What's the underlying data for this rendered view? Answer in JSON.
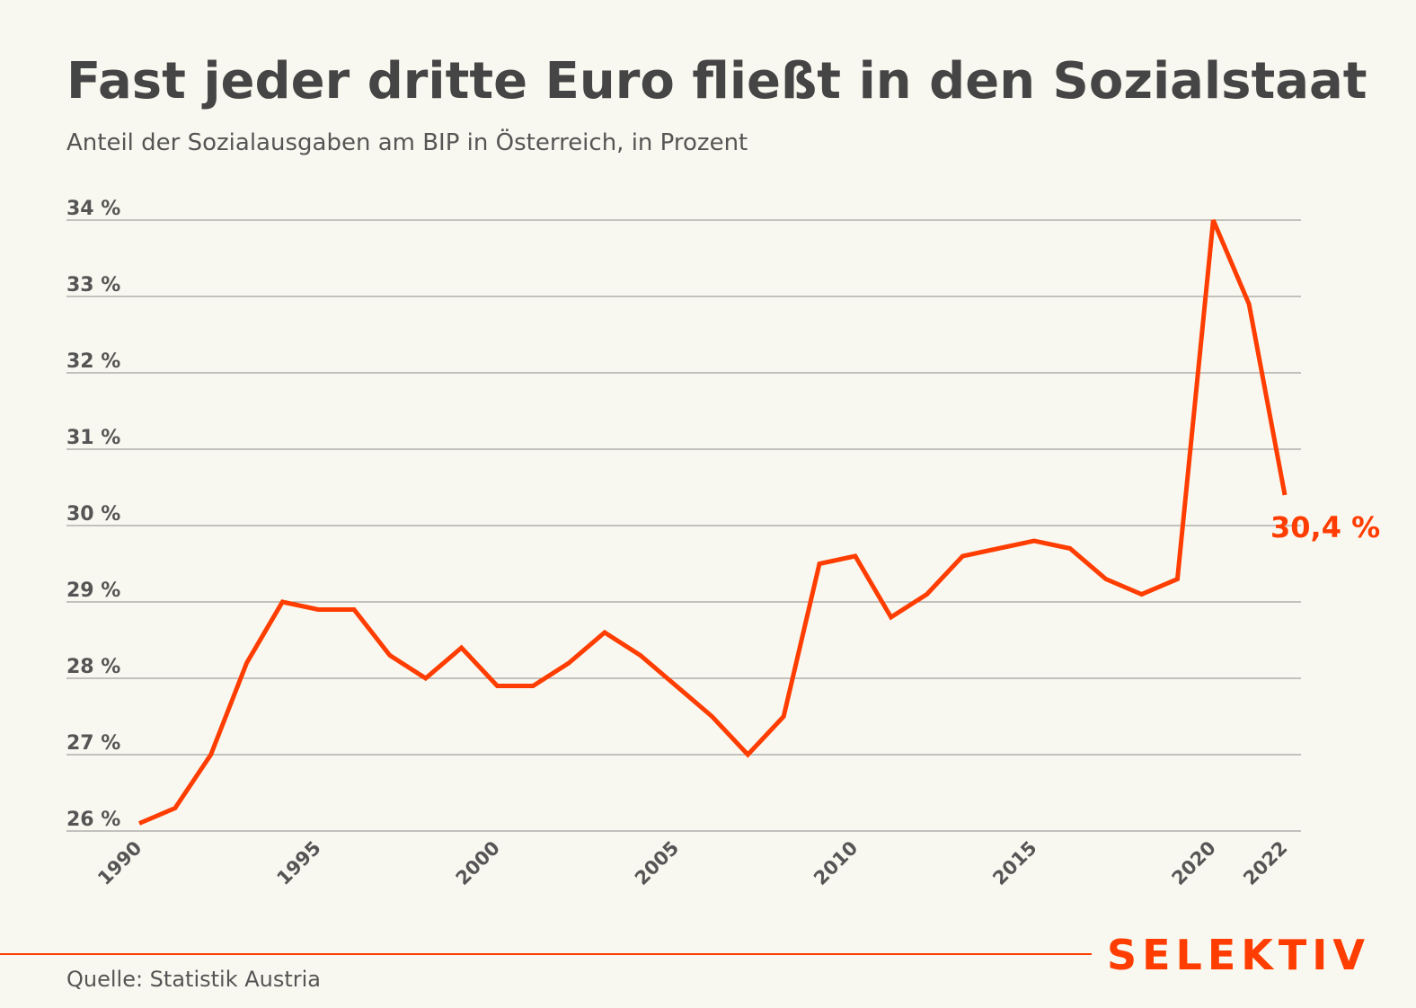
{
  "chart_data": {
    "type": "line",
    "title": "Fast jeder dritte Euro fließt in den Sozialstaat",
    "subtitle": "Anteil der Sozialausgaben am BIP in Österreich, in Prozent",
    "x": [
      1990,
      1991,
      1992,
      1993,
      1994,
      1995,
      1996,
      1997,
      1998,
      1999,
      2000,
      2001,
      2002,
      2003,
      2004,
      2005,
      2006,
      2007,
      2008,
      2009,
      2010,
      2011,
      2012,
      2013,
      2014,
      2015,
      2016,
      2017,
      2018,
      2019,
      2020,
      2021,
      2022
    ],
    "values": [
      26.1,
      26.3,
      27.0,
      28.2,
      29.0,
      28.9,
      28.9,
      28.3,
      28.0,
      28.4,
      27.9,
      27.9,
      28.2,
      28.6,
      28.3,
      27.9,
      27.5,
      27.0,
      27.5,
      29.5,
      29.6,
      28.8,
      29.1,
      29.6,
      29.7,
      29.8,
      29.7,
      29.3,
      29.1,
      29.3,
      34.0,
      32.9,
      30.4
    ],
    "ylim": [
      26,
      34
    ],
    "xlim": [
      1990,
      2022
    ],
    "y_ticks": [
      "26 %",
      "27 %",
      "28 %",
      "29 %",
      "30 %",
      "31 %",
      "32 %",
      "33 %",
      "34 %"
    ],
    "x_ticks": [
      "1990",
      "1995",
      "2000",
      "2005",
      "2010",
      "2015",
      "2020",
      "2022"
    ],
    "end_label": "30,4 %",
    "grid": "horizontal",
    "line_color": "#ff3d00"
  },
  "source": "Quelle: Statistik Austria",
  "logo": "SELEKTIV",
  "colors": {
    "background": "#f9f8f0",
    "accent": "#ff3d00",
    "text": "#454545",
    "grid": "#8a8a8a"
  }
}
